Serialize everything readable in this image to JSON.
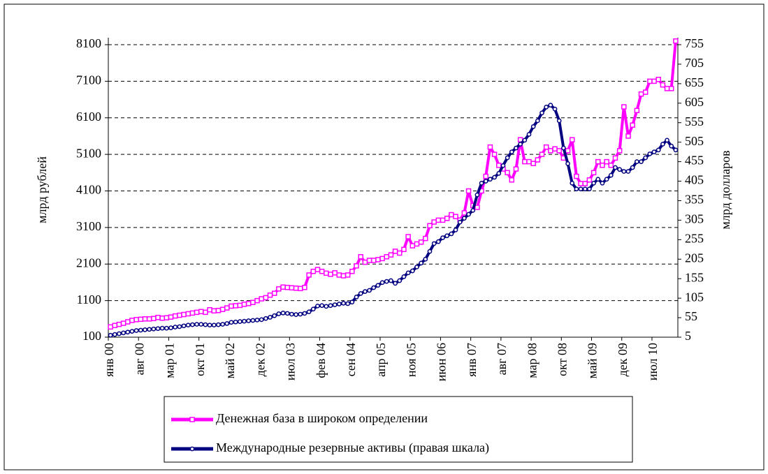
{
  "chart_data": {
    "type": "line",
    "ylabel": "млрд рублей",
    "y2label": "млрд долларов",
    "categories": [
      "янв 00",
      null,
      null,
      null,
      null,
      null,
      null,
      "авг 00",
      null,
      null,
      null,
      null,
      null,
      null,
      "мар 01",
      null,
      null,
      null,
      null,
      null,
      null,
      "окт 01",
      null,
      null,
      null,
      null,
      null,
      null,
      "май 02",
      null,
      null,
      null,
      null,
      null,
      null,
      "дек 02",
      null,
      null,
      null,
      null,
      null,
      null,
      "июл 03",
      null,
      null,
      null,
      null,
      null,
      null,
      "фев 04",
      null,
      null,
      null,
      null,
      null,
      null,
      "сен 04",
      null,
      null,
      null,
      null,
      null,
      null,
      "апр 05",
      null,
      null,
      null,
      null,
      null,
      null,
      "ноя 05",
      null,
      null,
      null,
      null,
      null,
      null,
      "июн 06",
      null,
      null,
      null,
      null,
      null,
      null,
      "янв 07",
      null,
      null,
      null,
      null,
      null,
      null,
      "авг 07",
      null,
      null,
      null,
      null,
      null,
      null,
      "мар 08",
      null,
      null,
      null,
      null,
      null,
      null,
      "окт 08",
      null,
      null,
      null,
      null,
      null,
      null,
      "май 09",
      null,
      null,
      null,
      null,
      null,
      null,
      "дек 09",
      null,
      null,
      null,
      null,
      null,
      null,
      "июл 10",
      null,
      null,
      null,
      null,
      null
    ],
    "series": [
      {
        "name": "Денежная база в широком определении",
        "color": "#ff00ff",
        "marker": "square",
        "values": [
          380,
          420,
          450,
          480,
          520,
          560,
          580,
          590,
          600,
          600,
          610,
          640,
          620,
          630,
          650,
          680,
          700,
          720,
          740,
          760,
          780,
          800,
          780,
          850,
          820,
          830,
          860,
          900,
          950,
          960,
          970,
          1000,
          1020,
          1050,
          1100,
          1150,
          1180,
          1250,
          1300,
          1420,
          1470,
          1460,
          1450,
          1440,
          1430,
          1460,
          1800,
          1900,
          1950,
          1900,
          1850,
          1820,
          1860,
          1800,
          1780,
          1800,
          1900,
          2050,
          2300,
          2150,
          2200,
          2200,
          2220,
          2250,
          2300,
          2350,
          2450,
          2400,
          2500,
          2850,
          2600,
          2650,
          2700,
          2800,
          3150,
          3250,
          3300,
          3300,
          3350,
          3450,
          3400,
          3300,
          3500,
          4100,
          3700,
          3650,
          4100,
          4500,
          5300,
          5100,
          4800,
          4700,
          4600,
          4400,
          4700,
          5500,
          4900,
          4900,
          4850,
          4950,
          5100,
          5300,
          5200,
          5250,
          5200,
          5000,
          5200,
          5500,
          4500,
          4300,
          4300,
          4400,
          4600,
          4900,
          4800,
          4900,
          4800,
          5000,
          5200,
          6400,
          5600,
          5900,
          6300,
          6750,
          6800,
          7100,
          7100,
          7150,
          7000,
          6900,
          6900,
          8200
        ]
      },
      {
        "name": "Международные резервные активы (правая шкала)",
        "color": "#000080",
        "marker": "circle",
        "axis": "y2",
        "values": [
          10,
          12,
          14,
          16,
          18,
          20,
          22,
          23,
          24,
          25,
          26,
          27,
          28,
          28,
          29,
          31,
          32,
          34,
          36,
          37,
          38,
          38,
          37,
          36,
          36,
          37,
          38,
          40,
          43,
          44,
          45,
          46,
          47,
          48,
          49,
          50,
          53,
          56,
          60,
          65,
          67,
          66,
          64,
          63,
          64,
          66,
          70,
          77,
          85,
          86,
          84,
          86,
          88,
          90,
          92,
          91,
          95,
          108,
          117,
          122,
          125,
          132,
          138,
          145,
          148,
          150,
          143,
          150,
          160,
          170,
          175,
          185,
          195,
          205,
          225,
          245,
          250,
          260,
          265,
          270,
          280,
          300,
          310,
          320,
          330,
          370,
          400,
          405,
          410,
          415,
          425,
          445,
          465,
          480,
          490,
          500,
          510,
          525,
          545,
          560,
          580,
          595,
          600,
          590,
          560,
          490,
          450,
          400,
          385,
          385,
          385,
          385,
          400,
          410,
          400,
          410,
          420,
          440,
          435,
          430,
          430,
          440,
          455,
          455,
          465,
          475,
          480,
          485,
          500,
          510,
          495,
          485
        ]
      }
    ],
    "ylim": [
      100,
      8100
    ],
    "yticks": [
      100,
      1100,
      2100,
      3100,
      4100,
      5100,
      6100,
      7100,
      8100
    ],
    "y2lim": [
      5,
      755
    ],
    "y2ticks": [
      5,
      55,
      105,
      155,
      205,
      255,
      305,
      355,
      405,
      455,
      505,
      555,
      605,
      655,
      705,
      755
    ],
    "grid": true,
    "legend": "bottom"
  }
}
